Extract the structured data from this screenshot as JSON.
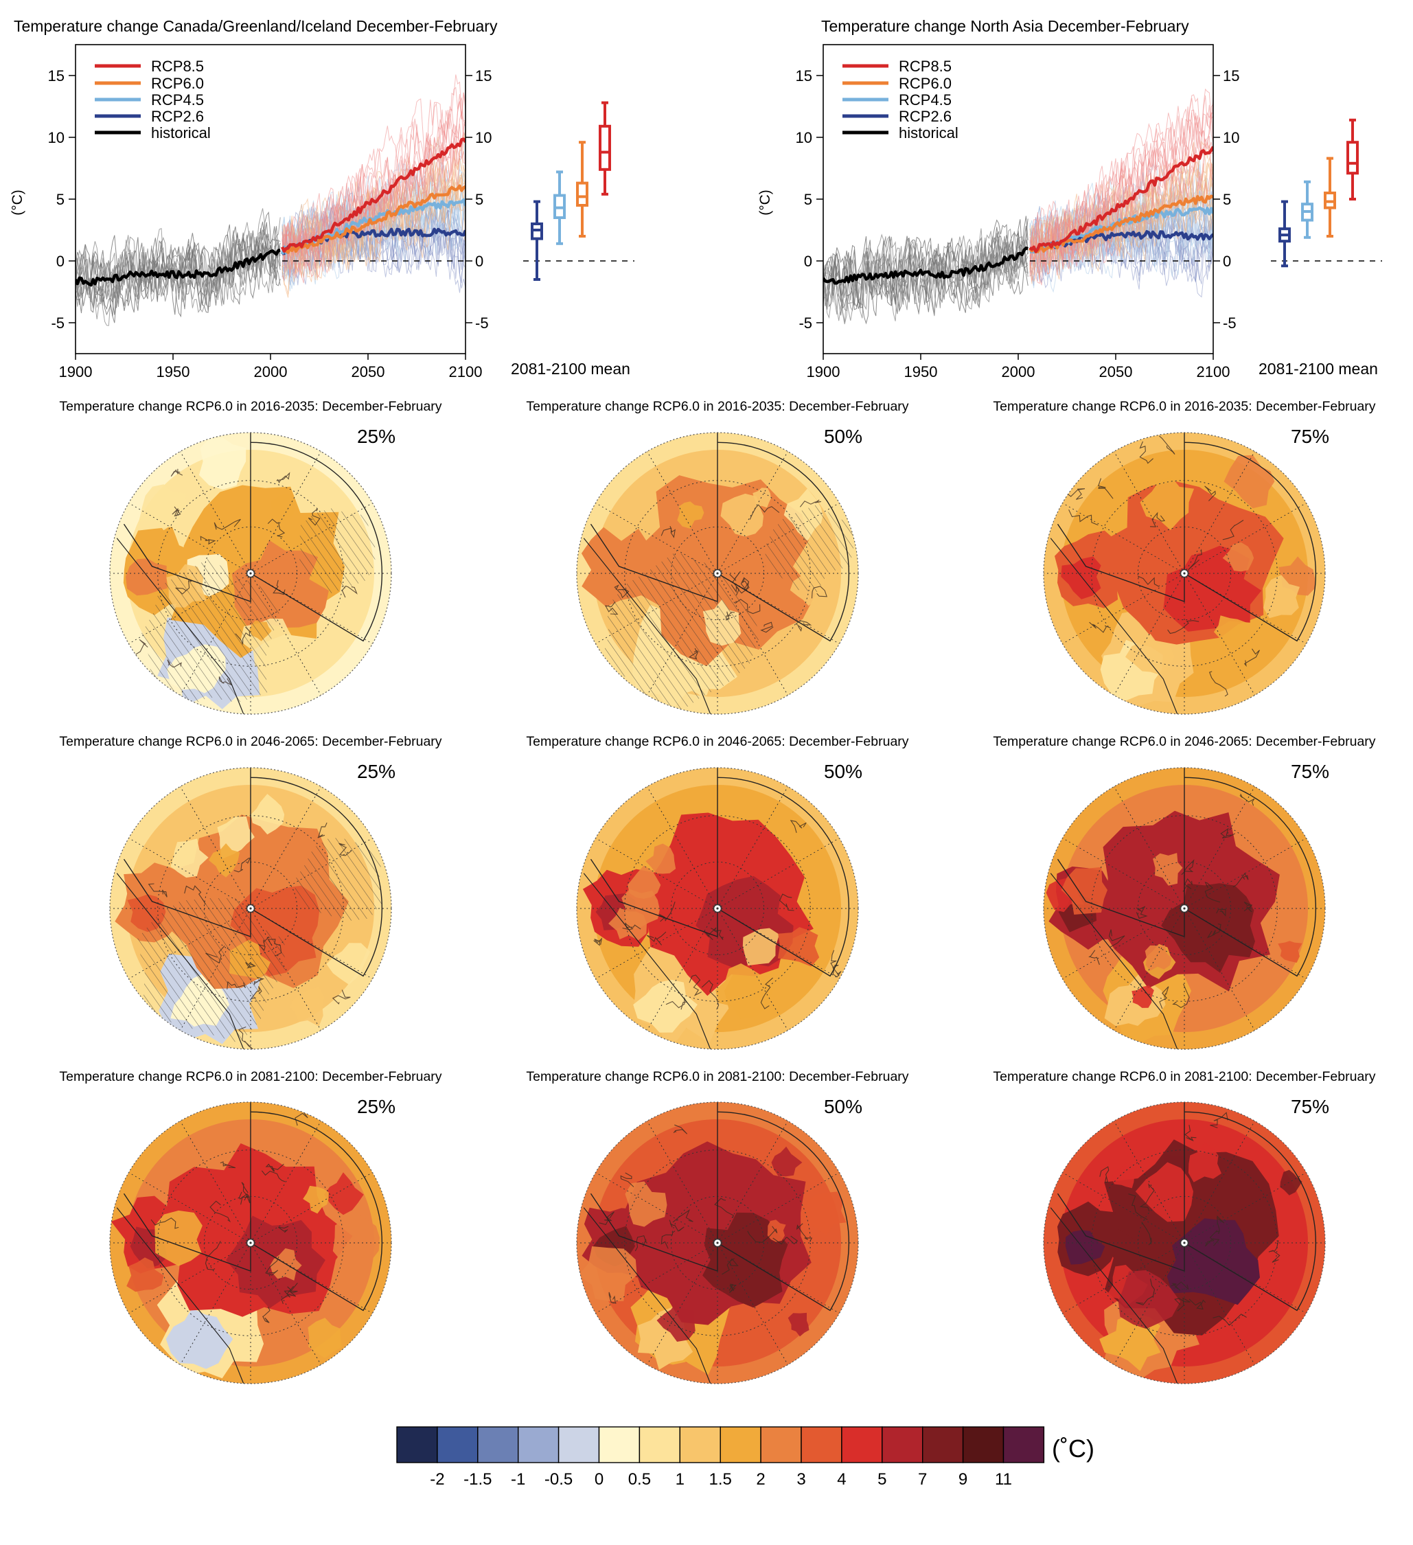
{
  "timeseries_panels": [
    {
      "title": "Temperature change Canada/Greenland/Iceland December-February",
      "ylabel": "(°C)",
      "boxplot_label": "2081-2100 mean",
      "legend": [
        "RCP8.5",
        "RCP6.0",
        "RCP4.5",
        "RCP2.6",
        "historical"
      ]
    },
    {
      "title": "Temperature change North Asia December-February",
      "ylabel": "(°C)",
      "boxplot_label": "2081-2100 mean",
      "legend": [
        "RCP8.5",
        "RCP6.0",
        "RCP4.5",
        "RCP2.6",
        "historical"
      ]
    }
  ],
  "map_panels": [
    {
      "title": "Temperature change RCP6.0 in 2016-2035: December-February",
      "percentile": "25%"
    },
    {
      "title": "Temperature change RCP6.0 in 2016-2035: December-February",
      "percentile": "50%"
    },
    {
      "title": "Temperature change RCP6.0 in 2016-2035: December-February",
      "percentile": "75%"
    },
    {
      "title": "Temperature change RCP6.0 in 2046-2065: December-February",
      "percentile": "25%"
    },
    {
      "title": "Temperature change RCP6.0 in 2046-2065: December-February",
      "percentile": "50%"
    },
    {
      "title": "Temperature change RCP6.0 in 2046-2065: December-February",
      "percentile": "75%"
    },
    {
      "title": "Temperature change RCP6.0 in 2081-2100: December-February",
      "percentile": "25%"
    },
    {
      "title": "Temperature change RCP6.0 in 2081-2100: December-February",
      "percentile": "50%"
    },
    {
      "title": "Temperature change RCP6.0 in 2081-2100: December-February",
      "percentile": "75%"
    }
  ],
  "colorbar": {
    "unit": "(˚C)",
    "ticks": [
      "-2",
      "-1.5",
      "-1",
      "-0.5",
      "0",
      "0.5",
      "1",
      "1.5",
      "2",
      "3",
      "4",
      "5",
      "7",
      "9",
      "11"
    ],
    "colors": [
      "#1f2a52",
      "#3f5a9c",
      "#6b80b4",
      "#9aaad1",
      "#ccd4e6",
      "#fff6cc",
      "#fde39b",
      "#f8c56b",
      "#f1aa3a",
      "#ea8240",
      "#e35a30",
      "#d92e2a",
      "#b0242c",
      "#7c1d20",
      "#571516",
      "#5a1a3e"
    ]
  },
  "chart_data": [
    {
      "type": "line",
      "title": "Temperature change Canada/Greenland/Iceland December-February",
      "xlabel": "",
      "ylabel": "(°C)",
      "xlim": [
        1900,
        2100
      ],
      "ylim": [
        -7.5,
        17.5
      ],
      "xticks": [
        1900,
        1950,
        2000,
        2050,
        2100
      ],
      "yticks": [
        -5,
        0,
        5,
        10,
        15
      ],
      "legend_position": "top-left",
      "colors": {
        "RCP8.5": "#d62728",
        "RCP6.0": "#ee8033",
        "RCP4.5": "#77b1dc",
        "RCP2.6": "#2b3f8c",
        "historical": "#000000"
      },
      "series": [
        {
          "name": "historical",
          "x": [
            1900,
            1910,
            1920,
            1930,
            1940,
            1950,
            1960,
            1970,
            1980,
            1990,
            2000,
            2005
          ],
          "values": [
            -1.6,
            -1.7,
            -1.4,
            -1.1,
            -1.0,
            -1.1,
            -1.1,
            -1.0,
            -0.5,
            0.0,
            0.6,
            0.8
          ]
        },
        {
          "name": "RCP8.5",
          "x": [
            2006,
            2020,
            2030,
            2040,
            2050,
            2060,
            2070,
            2080,
            2090,
            2100
          ],
          "values": [
            0.9,
            1.6,
            2.5,
            3.5,
            4.6,
            5.7,
            6.9,
            8.0,
            9.0,
            9.8
          ]
        },
        {
          "name": "RCP6.0",
          "x": [
            2006,
            2020,
            2030,
            2040,
            2050,
            2060,
            2070,
            2080,
            2090,
            2100
          ],
          "values": [
            0.7,
            1.3,
            1.8,
            2.4,
            3.0,
            3.7,
            4.4,
            5.0,
            5.6,
            6.0
          ]
        },
        {
          "name": "RCP4.5",
          "x": [
            2006,
            2020,
            2030,
            2040,
            2050,
            2060,
            2070,
            2080,
            2090,
            2100
          ],
          "values": [
            0.8,
            1.5,
            2.1,
            2.8,
            3.3,
            3.8,
            4.1,
            4.4,
            4.6,
            4.7
          ]
        },
        {
          "name": "RCP2.6",
          "x": [
            2006,
            2020,
            2030,
            2040,
            2050,
            2060,
            2070,
            2080,
            2090,
            2100
          ],
          "values": [
            0.8,
            1.4,
            1.8,
            2.1,
            2.2,
            2.3,
            2.3,
            2.3,
            2.3,
            2.2
          ]
        }
      ],
      "boxplot": {
        "label": "2081-2100 mean",
        "boxes": [
          {
            "name": "RCP2.6",
            "min": -1.5,
            "q1": 1.8,
            "median": 2.5,
            "q3": 3.0,
            "max": 4.8
          },
          {
            "name": "RCP4.5",
            "min": 1.4,
            "q1": 3.5,
            "median": 4.3,
            "q3": 5.3,
            "max": 7.2
          },
          {
            "name": "RCP6.0",
            "min": 2.0,
            "q1": 4.5,
            "median": 5.2,
            "q3": 6.3,
            "max": 9.6
          },
          {
            "name": "RCP8.5",
            "min": 5.4,
            "q1": 7.4,
            "median": 8.8,
            "q3": 10.9,
            "max": 12.8
          }
        ]
      }
    },
    {
      "type": "line",
      "title": "Temperature change North Asia December-February",
      "xlabel": "",
      "ylabel": "(°C)",
      "xlim": [
        1900,
        2100
      ],
      "ylim": [
        -7.5,
        17.5
      ],
      "xticks": [
        1900,
        1950,
        2000,
        2050,
        2100
      ],
      "yticks": [
        -5,
        0,
        5,
        10,
        15
      ],
      "legend_position": "top-left",
      "colors": {
        "RCP8.5": "#d62728",
        "RCP6.0": "#ee8033",
        "RCP4.5": "#77b1dc",
        "RCP2.6": "#2b3f8c",
        "historical": "#000000"
      },
      "series": [
        {
          "name": "historical",
          "x": [
            1900,
            1910,
            1920,
            1930,
            1940,
            1950,
            1960,
            1970,
            1980,
            1990,
            2000,
            2005
          ],
          "values": [
            -1.5,
            -1.6,
            -1.3,
            -1.2,
            -1.1,
            -1.0,
            -1.1,
            -1.0,
            -0.6,
            -0.1,
            0.5,
            0.9
          ]
        },
        {
          "name": "RCP8.5",
          "x": [
            2006,
            2020,
            2030,
            2040,
            2050,
            2060,
            2070,
            2080,
            2090,
            2100
          ],
          "values": [
            0.9,
            1.5,
            2.3,
            3.2,
            4.2,
            5.3,
            6.4,
            7.4,
            8.3,
            9.0
          ]
        },
        {
          "name": "RCP6.0",
          "x": [
            2006,
            2020,
            2030,
            2040,
            2050,
            2060,
            2070,
            2080,
            2090,
            2100
          ],
          "values": [
            0.8,
            1.3,
            1.7,
            2.2,
            2.8,
            3.4,
            4.0,
            4.5,
            4.9,
            5.1
          ]
        },
        {
          "name": "RCP4.5",
          "x": [
            2006,
            2020,
            2030,
            2040,
            2050,
            2060,
            2070,
            2080,
            2090,
            2100
          ],
          "values": [
            0.9,
            1.4,
            2.0,
            2.6,
            3.0,
            3.4,
            3.7,
            3.9,
            4.0,
            4.1
          ]
        },
        {
          "name": "RCP2.6",
          "x": [
            2006,
            2020,
            2030,
            2040,
            2050,
            2060,
            2070,
            2080,
            2090,
            2100
          ],
          "values": [
            0.9,
            1.3,
            1.7,
            1.9,
            2.0,
            2.1,
            2.1,
            2.1,
            2.0,
            2.0
          ]
        }
      ],
      "boxplot": {
        "label": "2081-2100 mean",
        "boxes": [
          {
            "name": "RCP2.6",
            "min": -0.4,
            "q1": 1.6,
            "median": 2.1,
            "q3": 2.6,
            "max": 4.8
          },
          {
            "name": "RCP4.5",
            "min": 1.9,
            "q1": 3.3,
            "median": 4.0,
            "q3": 4.6,
            "max": 6.4
          },
          {
            "name": "RCP6.0",
            "min": 2.0,
            "q1": 4.3,
            "median": 4.8,
            "q3": 5.5,
            "max": 8.3
          },
          {
            "name": "RCP8.5",
            "min": 5.0,
            "q1": 7.1,
            "median": 7.9,
            "q3": 9.6,
            "max": 11.4
          }
        ]
      }
    }
  ]
}
